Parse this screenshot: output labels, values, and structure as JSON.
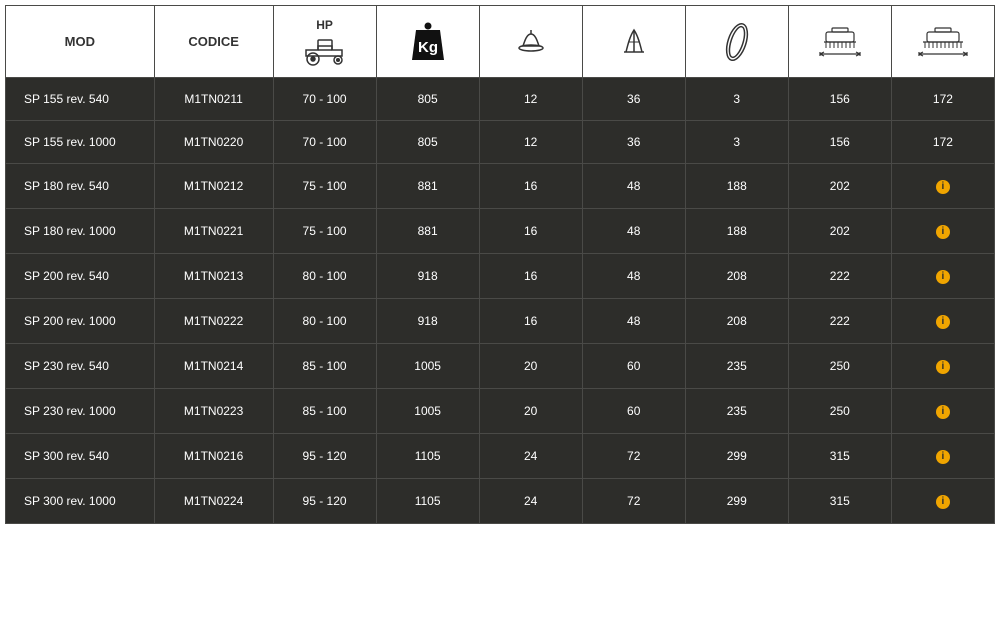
{
  "table": {
    "header_bg": "#ffffff",
    "header_fg": "#333333",
    "row_bg": "#2d2d2a",
    "row_fg": "#ffffff",
    "border_color": "#4a4a47",
    "info_icon_color": "#f0a500",
    "font_family": "Arial",
    "header_font_size": 13,
    "body_font_size": 12,
    "columns": [
      {
        "key": "mod",
        "label": "MOD",
        "icon": null,
        "align": "left"
      },
      {
        "key": "codice",
        "label": "CODICE",
        "icon": null,
        "align": "center"
      },
      {
        "key": "hp",
        "label": "HP",
        "icon": "tractor",
        "align": "center"
      },
      {
        "key": "kg",
        "label": "",
        "icon": "kg-badge",
        "align": "center"
      },
      {
        "key": "bell",
        "label": "",
        "icon": "bell",
        "align": "center"
      },
      {
        "key": "spike",
        "label": "",
        "icon": "spike",
        "align": "center"
      },
      {
        "key": "belt",
        "label": "",
        "icon": "belt",
        "align": "center"
      },
      {
        "key": "w1",
        "label": "",
        "icon": "width-a",
        "align": "center"
      },
      {
        "key": "w2",
        "label": "",
        "icon": "width-b",
        "align": "center"
      }
    ],
    "rows": [
      {
        "mod": "SP 155 rev. 540",
        "codice": "M1TN0211",
        "hp": "70 - 100",
        "kg": "805",
        "bell": "12",
        "spike": "36",
        "belt": "3",
        "w1": "156",
        "w2": "172"
      },
      {
        "mod": "SP 155 rev. 1000",
        "codice": "M1TN0220",
        "hp": "70 - 100",
        "kg": "805",
        "bell": "12",
        "spike": "36",
        "belt": "3",
        "w1": "156",
        "w2": "172"
      },
      {
        "mod": "SP 180 rev. 540",
        "codice": "M1TN0212",
        "hp": "75 - 100",
        "kg": "881",
        "bell": "16",
        "spike": "48",
        "belt": "188",
        "w1": "202",
        "w2": "INFO"
      },
      {
        "mod": "SP 180 rev. 1000",
        "codice": "M1TN0221",
        "hp": "75 - 100",
        "kg": "881",
        "bell": "16",
        "spike": "48",
        "belt": "188",
        "w1": "202",
        "w2": "INFO"
      },
      {
        "mod": "SP 200 rev. 540",
        "codice": "M1TN0213",
        "hp": "80 - 100",
        "kg": "918",
        "bell": "16",
        "spike": "48",
        "belt": "208",
        "w1": "222",
        "w2": "INFO"
      },
      {
        "mod": "SP 200 rev. 1000",
        "codice": "M1TN0222",
        "hp": "80 - 100",
        "kg": "918",
        "bell": "16",
        "spike": "48",
        "belt": "208",
        "w1": "222",
        "w2": "INFO"
      },
      {
        "mod": "SP 230 rev. 540",
        "codice": "M1TN0214",
        "hp": "85 - 100",
        "kg": "1005",
        "bell": "20",
        "spike": "60",
        "belt": "235",
        "w1": "250",
        "w2": "INFO"
      },
      {
        "mod": "SP 230 rev. 1000",
        "codice": "M1TN0223",
        "hp": "85 - 100",
        "kg": "1005",
        "bell": "20",
        "spike": "60",
        "belt": "235",
        "w1": "250",
        "w2": "INFO"
      },
      {
        "mod": "SP 300 rev. 540",
        "codice": "M1TN0216",
        "hp": "95 - 120",
        "kg": "1105",
        "bell": "24",
        "spike": "72",
        "belt": "299",
        "w1": "315",
        "w2": "INFO"
      },
      {
        "mod": "SP 300 rev. 1000",
        "codice": "M1TN0224",
        "hp": "95 - 120",
        "kg": "1105",
        "bell": "24",
        "spike": "72",
        "belt": "299",
        "w1": "315",
        "w2": "INFO"
      }
    ]
  }
}
